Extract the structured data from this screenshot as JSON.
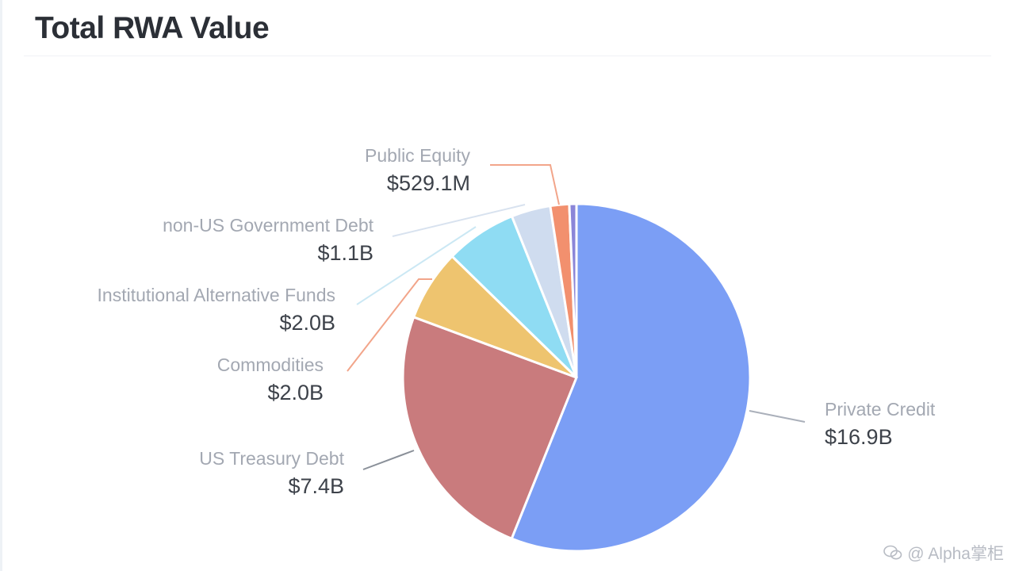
{
  "chart_data": {
    "type": "pie",
    "title": "Total RWA Value",
    "unit": "USD",
    "slices": [
      {
        "label": "Private Credit",
        "value_text": "$16.9B",
        "value": 16.9,
        "color": "#7b9ef5"
      },
      {
        "label": "US Treasury Debt",
        "value_text": "$7.4B",
        "value": 7.4,
        "color": "#c97b7d"
      },
      {
        "label": "Commodities",
        "value_text": "$2.0B",
        "value": 2.0,
        "color": "#eec46f"
      },
      {
        "label": "Institutional Alternative Funds",
        "value_text": "$2.0B",
        "value": 2.0,
        "color": "#8fdcf3"
      },
      {
        "label": "non-US Government Debt",
        "value_text": "$1.1B",
        "value": 1.1,
        "color": "#cfdcef"
      },
      {
        "label": "Public Equity",
        "value_text": "$529.1M",
        "value": 0.5291,
        "color": "#f2906e"
      },
      {
        "label": "",
        "value_text": "",
        "value": 0.2,
        "color": "#8b86d8"
      }
    ]
  },
  "watermark": {
    "icon": "wechat-icon",
    "text": "@ Alpha掌柜"
  }
}
